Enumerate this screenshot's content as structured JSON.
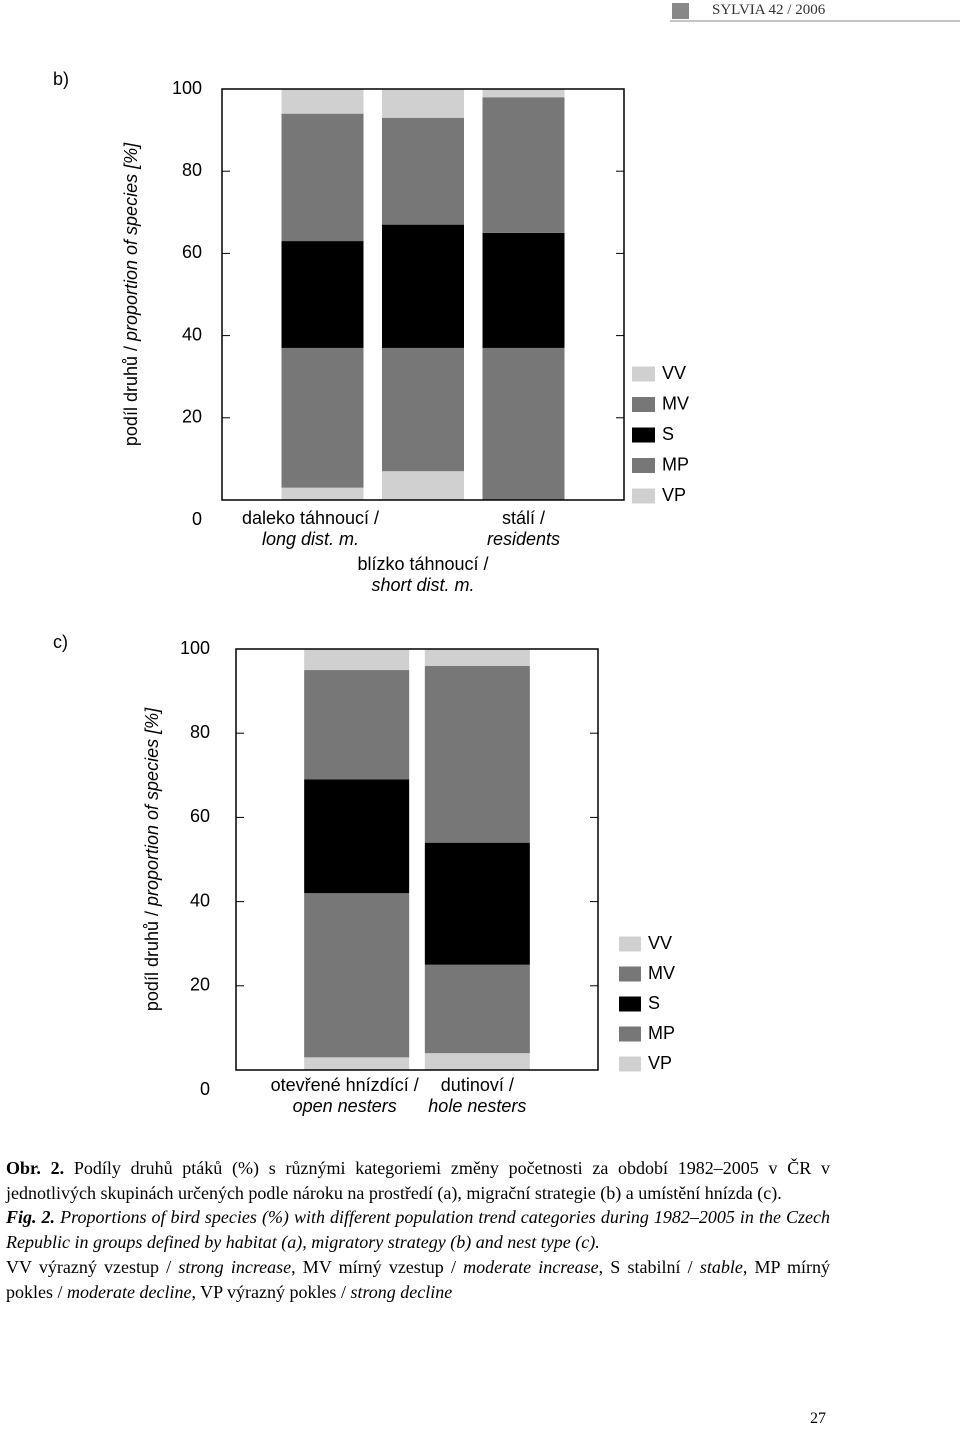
{
  "header": "SYLVIA 42 / 2006",
  "chart_data": [
    {
      "type": "bar",
      "stacked": true,
      "panel_label": "b)",
      "y_label": [
        "podíl druhů / ",
        "proportion of species  [%]"
      ],
      "categories": [
        [
          "daleko táhnoucí /",
          "long dist. m."
        ],
        [
          "blízko táhnoucí /",
          "short dist. m."
        ],
        [
          "stálí /",
          "residents"
        ]
      ],
      "series": [
        {
          "name": "VV",
          "color": "#d0d0d0",
          "values": [
            6,
            7,
            2
          ]
        },
        {
          "name": "MV",
          "color": "#777777",
          "values": [
            31,
            26,
            33
          ]
        },
        {
          "name": "S",
          "color": "#000000",
          "values": [
            26,
            30,
            28
          ]
        },
        {
          "name": "MP",
          "color": "#777777",
          "values": [
            34,
            30,
            37
          ]
        },
        {
          "name": "VP",
          "color": "#d0d0d0",
          "values": [
            3,
            7,
            0
          ]
        }
      ],
      "ylim": [
        0,
        100
      ],
      "yticks": [
        0,
        20,
        40,
        60,
        80,
        100
      ]
    },
    {
      "type": "bar",
      "stacked": true,
      "panel_label": "c)",
      "y_label": [
        "podíl druhů / ",
        "proportion of species  [%]"
      ],
      "categories": [
        [
          "otevřené hnízdící /",
          "open nesters"
        ],
        [
          "dutinoví /",
          "hole nesters"
        ]
      ],
      "series": [
        {
          "name": "VV",
          "color": "#d0d0d0",
          "values": [
            5,
            4
          ]
        },
        {
          "name": "MV",
          "color": "#777777",
          "values": [
            26,
            42
          ]
        },
        {
          "name": "S",
          "color": "#000000",
          "values": [
            27,
            29
          ]
        },
        {
          "name": "MP",
          "color": "#777777",
          "values": [
            39,
            21
          ]
        },
        {
          "name": "VP",
          "color": "#d0d0d0",
          "values": [
            3,
            4
          ]
        }
      ],
      "ylim": [
        0,
        100
      ],
      "yticks": [
        0,
        20,
        40,
        60,
        80,
        100
      ]
    }
  ],
  "caption": {
    "cz_label": "Obr. 2.",
    "cz_text": "Podíly druhů ptáků (%) s různými kategoriemi změny početnosti za období 1982–2005 v ČR v jednotlivých skupinách určených podle nároku na prostředí (a), migrační strategie (b) a umístění hnízda (c).",
    "en_label": "Fig. 2.",
    "en_text": "Proportions of bird species (%) with different population trend categories during 1982–2005 in the Czech Republic in groups defined by habitat (a), migratory strategy (b) and nest type (c).",
    "key": [
      "VV výrazný vzestup / ",
      "strong increase",
      ", MV mírný vzestup / ",
      "moderate increase",
      ", S stabilní / ",
      "stable",
      ", MP mírný pokles / ",
      "moderate decline",
      ", VP výrazný pokles / ",
      "strong decline"
    ]
  },
  "page_number": "27"
}
